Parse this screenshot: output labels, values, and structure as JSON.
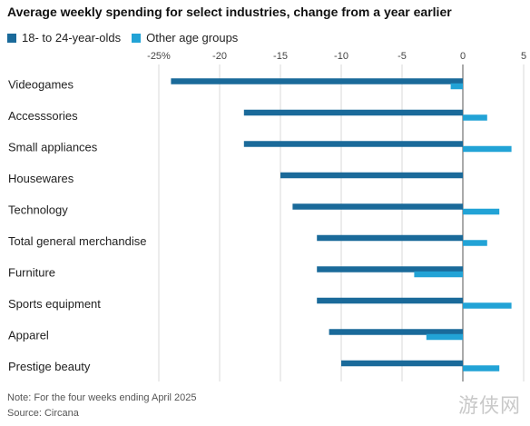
{
  "title": "Average weekly spending for select industries, change from a year earlier",
  "legend": {
    "series_1": "18- to 24-year-olds",
    "series_2": "Other age groups"
  },
  "colors": {
    "series_1": "#1a6a9a",
    "series_2": "#22a3d6",
    "grid": "#d9d9d9",
    "zero_line": "#555555"
  },
  "footnote": {
    "note": "Note: For the four weeks ending April 2025",
    "source": "Source: Circana"
  },
  "watermark": "游侠网",
  "chart_data": {
    "type": "bar",
    "orientation": "horizontal",
    "categories": [
      "Videogames",
      "Accesssories",
      "Small appliances",
      "Housewares",
      "Technology",
      "Total general merchandise",
      "Furniture",
      "Sports equipment",
      "Apparel",
      "Prestige beauty"
    ],
    "series": [
      {
        "name": "18- to 24-year-olds",
        "values": [
          -24,
          -18,
          -18,
          -15,
          -14,
          -12,
          -12,
          -12,
          -11,
          -10
        ]
      },
      {
        "name": "Other age groups",
        "values": [
          -1,
          2,
          4,
          0,
          3,
          2,
          -4,
          4,
          -3,
          3
        ]
      }
    ],
    "xlim": [
      -25,
      5
    ],
    "xticks": [
      -25,
      -20,
      -15,
      -10,
      -5,
      0,
      5
    ],
    "xtick_labels": [
      "-25%",
      "-20",
      "-15",
      "-10",
      "-5",
      "0",
      "5"
    ],
    "xaxis_position": "top",
    "grid": true,
    "legend_position": "top-left"
  }
}
